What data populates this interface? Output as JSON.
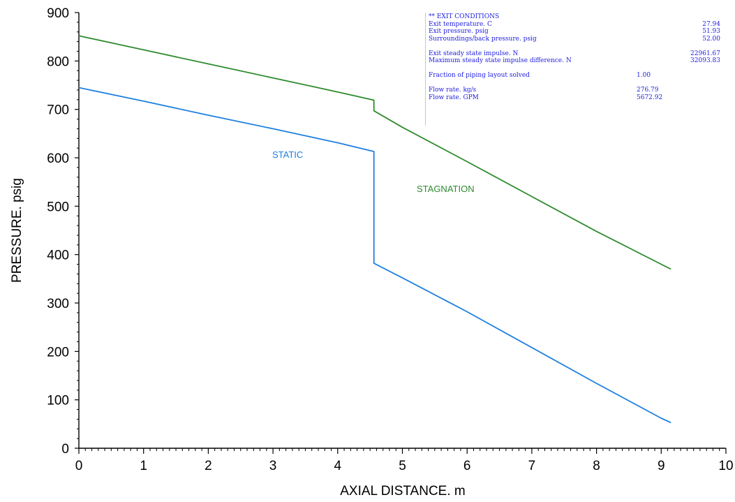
{
  "chart_data": {
    "type": "line",
    "xlabel": "AXIAL DISTANCE. m",
    "ylabel": "PRESSURE. psig",
    "xlim": [
      0,
      10
    ],
    "ylim": [
      0,
      900
    ],
    "x_ticks": [
      "0",
      "1",
      "2",
      "3",
      "4",
      "5",
      "6",
      "7",
      "8",
      "9",
      "10"
    ],
    "y_ticks": [
      "0",
      "100",
      "200",
      "300",
      "400",
      "500",
      "600",
      "700",
      "800",
      "900"
    ],
    "grid": false,
    "series": [
      {
        "name": "STATIC",
        "color": "#1e7fe0",
        "points": [
          [
            0,
            745
          ],
          [
            1,
            717
          ],
          [
            2,
            688
          ],
          [
            3,
            660
          ],
          [
            4,
            631
          ],
          [
            4.56,
            613
          ],
          [
            4.56,
            382
          ],
          [
            5,
            352
          ],
          [
            6,
            282
          ],
          [
            7,
            208
          ],
          [
            8,
            134
          ],
          [
            9,
            62
          ],
          [
            9.15,
            53
          ]
        ]
      },
      {
        "name": "STAGNATION",
        "color": "#2e8b2e",
        "points": [
          [
            0,
            852
          ],
          [
            1,
            823
          ],
          [
            2,
            794
          ],
          [
            3,
            765
          ],
          [
            4,
            736
          ],
          [
            4.56,
            719
          ],
          [
            4.56,
            697
          ],
          [
            5,
            663
          ],
          [
            6,
            592
          ],
          [
            7,
            520
          ],
          [
            8,
            448
          ],
          [
            9,
            380
          ],
          [
            9.15,
            370
          ]
        ]
      }
    ]
  },
  "exit_panel": {
    "header": "** EXIT CONDITIONS",
    "rows": [
      {
        "label": "Exit temperature. C",
        "value": "27.94"
      },
      {
        "label": "Exit pressure. psig",
        "value": "51.93"
      },
      {
        "label": "Surroundings/back pressure. psig",
        "value": "52.00"
      },
      {
        "label": "Exit steady state impulse. N",
        "value": "22961.67"
      },
      {
        "label": "Maximum steady state impulse difference. N",
        "value": "32093.83"
      },
      {
        "label": "Fraction of piping layout solved",
        "value": "1.00"
      },
      {
        "label": "Flow rate. kg/s",
        "value": "276.79"
      },
      {
        "label": "Flow rate. GPM",
        "value": "5672.92"
      }
    ]
  }
}
